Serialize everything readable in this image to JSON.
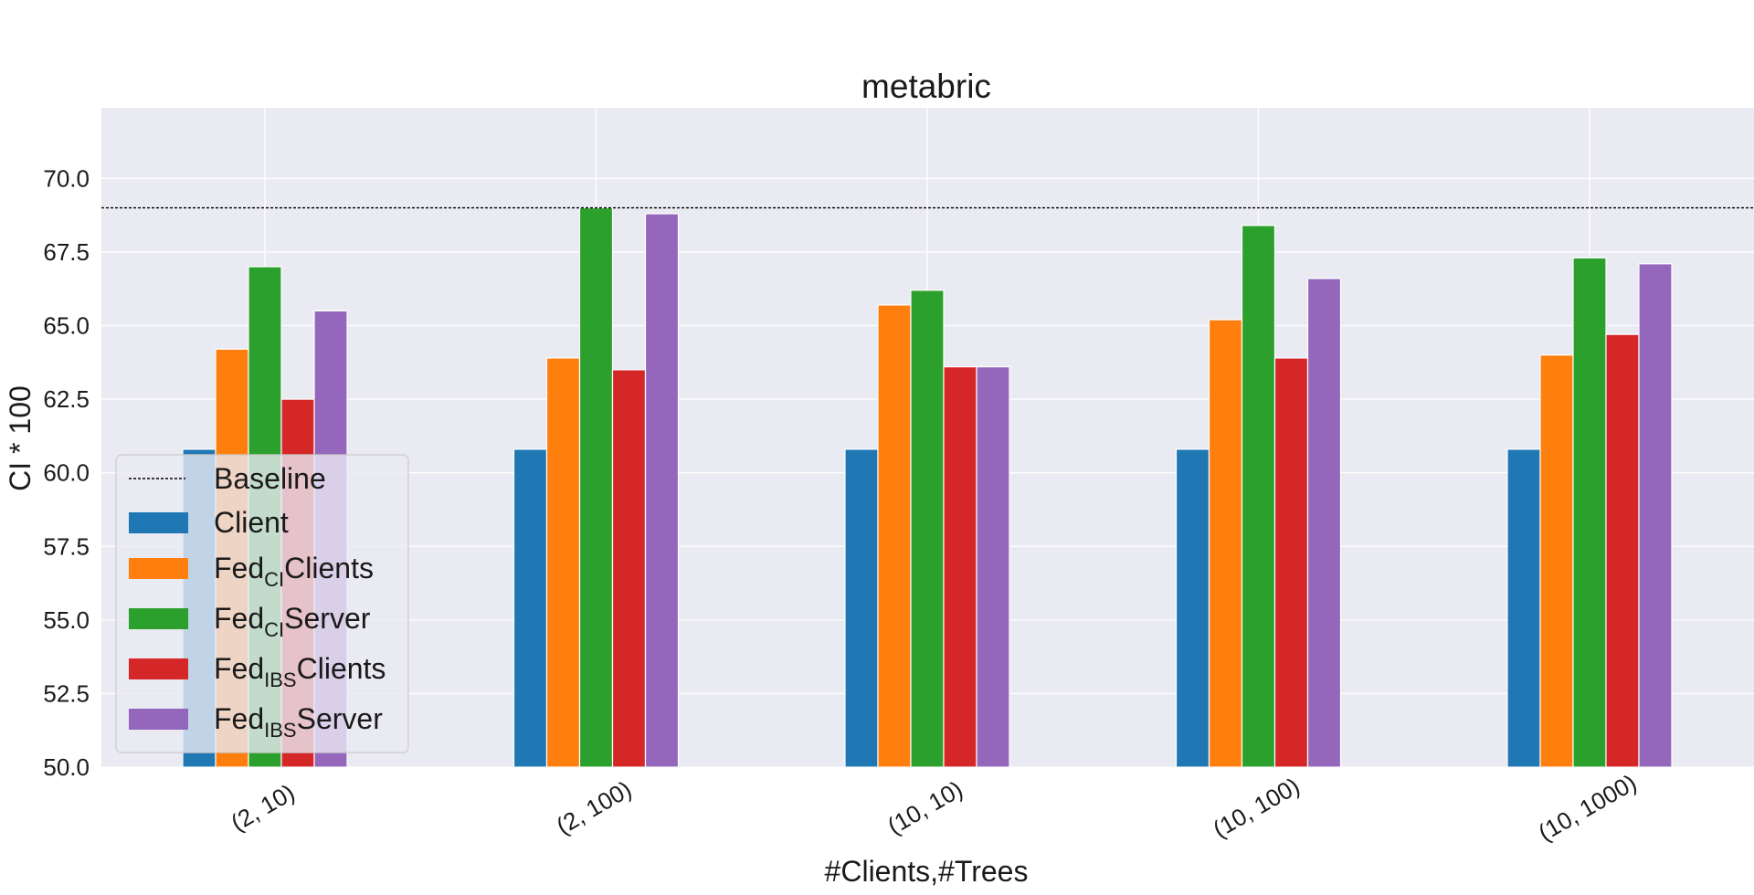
{
  "chart_data": {
    "type": "bar",
    "title": "metabric",
    "xlabel": "#Clients,#Trees",
    "ylabel": "CI * 100",
    "categories": [
      "(2, 10)",
      "(2, 100)",
      "(10, 10)",
      "(10, 100)",
      "(10, 1000)"
    ],
    "ylim": [
      50.0,
      72.4
    ],
    "yticks": [
      "50.0",
      "52.5",
      "55.0",
      "57.5",
      "60.0",
      "62.5",
      "65.0",
      "67.5",
      "70.0"
    ],
    "grid": true,
    "baseline": {
      "name": "Baseline",
      "value": 69.0,
      "color": "#000000",
      "style": "dashed"
    },
    "series": [
      {
        "name": "Client",
        "name_main": "Client",
        "name_sub": "",
        "name_tail": "",
        "color": "#1f77b4",
        "values": [
          60.8,
          60.8,
          60.8,
          60.8,
          60.8
        ]
      },
      {
        "name": "Fed_CI Clients",
        "name_main": "Fed",
        "name_sub": "CI",
        "name_tail": "Clients",
        "color": "#ff7f0e",
        "values": [
          64.2,
          63.9,
          65.7,
          65.2,
          64.0
        ]
      },
      {
        "name": "Fed_CI Server",
        "name_main": "Fed",
        "name_sub": "CI",
        "name_tail": "Server",
        "color": "#2ca02c",
        "values": [
          67.0,
          69.0,
          66.2,
          68.4,
          67.3
        ]
      },
      {
        "name": "Fed_IBS Clients",
        "name_main": "Fed",
        "name_sub": "IBS",
        "name_tail": "Clients",
        "color": "#d62728",
        "values": [
          62.5,
          63.5,
          63.6,
          63.9,
          64.7
        ]
      },
      {
        "name": "Fed_IBS Server",
        "name_main": "Fed",
        "name_sub": "IBS",
        "name_tail": "Server",
        "color": "#9467bd",
        "values": [
          65.5,
          68.8,
          63.6,
          66.6,
          67.1
        ]
      }
    ],
    "legend_position": "lower-left",
    "plot_background": "#eaeaf2",
    "grid_color": "#ffffff"
  }
}
